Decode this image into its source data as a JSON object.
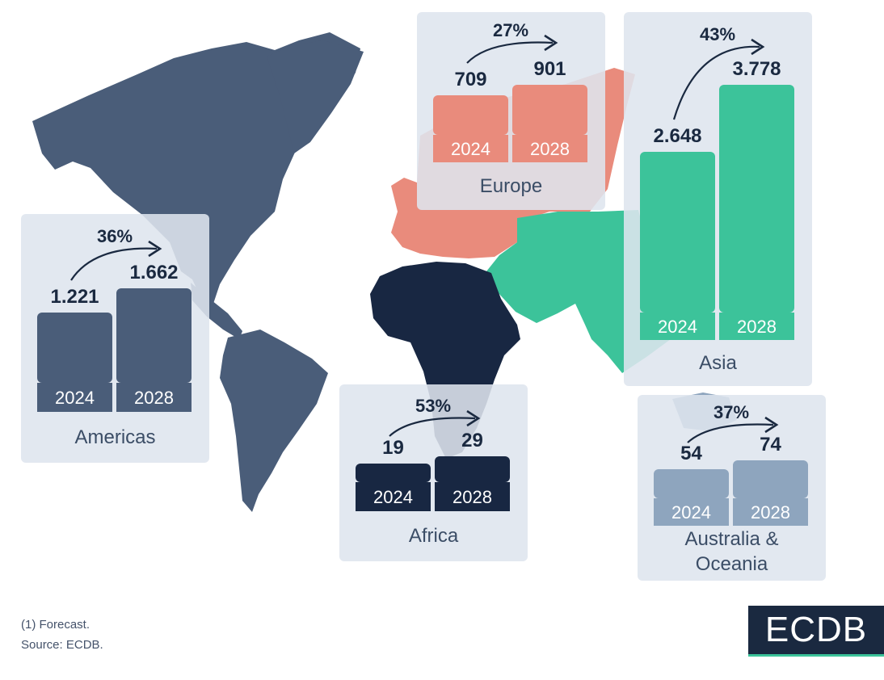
{
  "colors": {
    "americas": "#4a5d79",
    "europe": "#e98b7c",
    "asia": "#3cc39a",
    "africa": "#182742",
    "oceania": "#8ea5be",
    "panel_bg": "#dee5ee",
    "value_text": "#1a2940",
    "label_text": "#ffffff"
  },
  "chart_data": [
    {
      "type": "bar",
      "region": "Americas",
      "categories": [
        "2024",
        "2028"
      ],
      "values": [
        1.221,
        1.662
      ],
      "value_labels": [
        "1.221",
        "1.662"
      ],
      "growth": "36%"
    },
    {
      "type": "bar",
      "region": "Europe",
      "categories": [
        "2024",
        "2028"
      ],
      "values": [
        709,
        901
      ],
      "value_labels": [
        "709",
        "901"
      ],
      "growth": "27%"
    },
    {
      "type": "bar",
      "region": "Asia",
      "categories": [
        "2024",
        "2028"
      ],
      "values": [
        2.648,
        3.778
      ],
      "value_labels": [
        "2.648",
        "3.778"
      ],
      "growth": "43%"
    },
    {
      "type": "bar",
      "region": "Africa",
      "categories": [
        "2024",
        "2028"
      ],
      "values": [
        19,
        29
      ],
      "value_labels": [
        "19",
        "29"
      ],
      "growth": "53%"
    },
    {
      "type": "bar",
      "region": "Australia & Oceania",
      "categories": [
        "2024",
        "2028"
      ],
      "values": [
        54,
        74
      ],
      "value_labels": [
        "54",
        "74"
      ],
      "growth": "37%"
    }
  ],
  "panels": {
    "americas": {
      "name": "Americas"
    },
    "europe": {
      "name": "Europe"
    },
    "asia": {
      "name": "Asia"
    },
    "africa": {
      "name": "Africa"
    },
    "oceania": {
      "name_line1": "Australia &",
      "name_line2": "Oceania"
    }
  },
  "footnotes": {
    "forecast": "(1) Forecast.",
    "source": "Source: ECDB."
  },
  "logo": {
    "text": "ECDB"
  }
}
